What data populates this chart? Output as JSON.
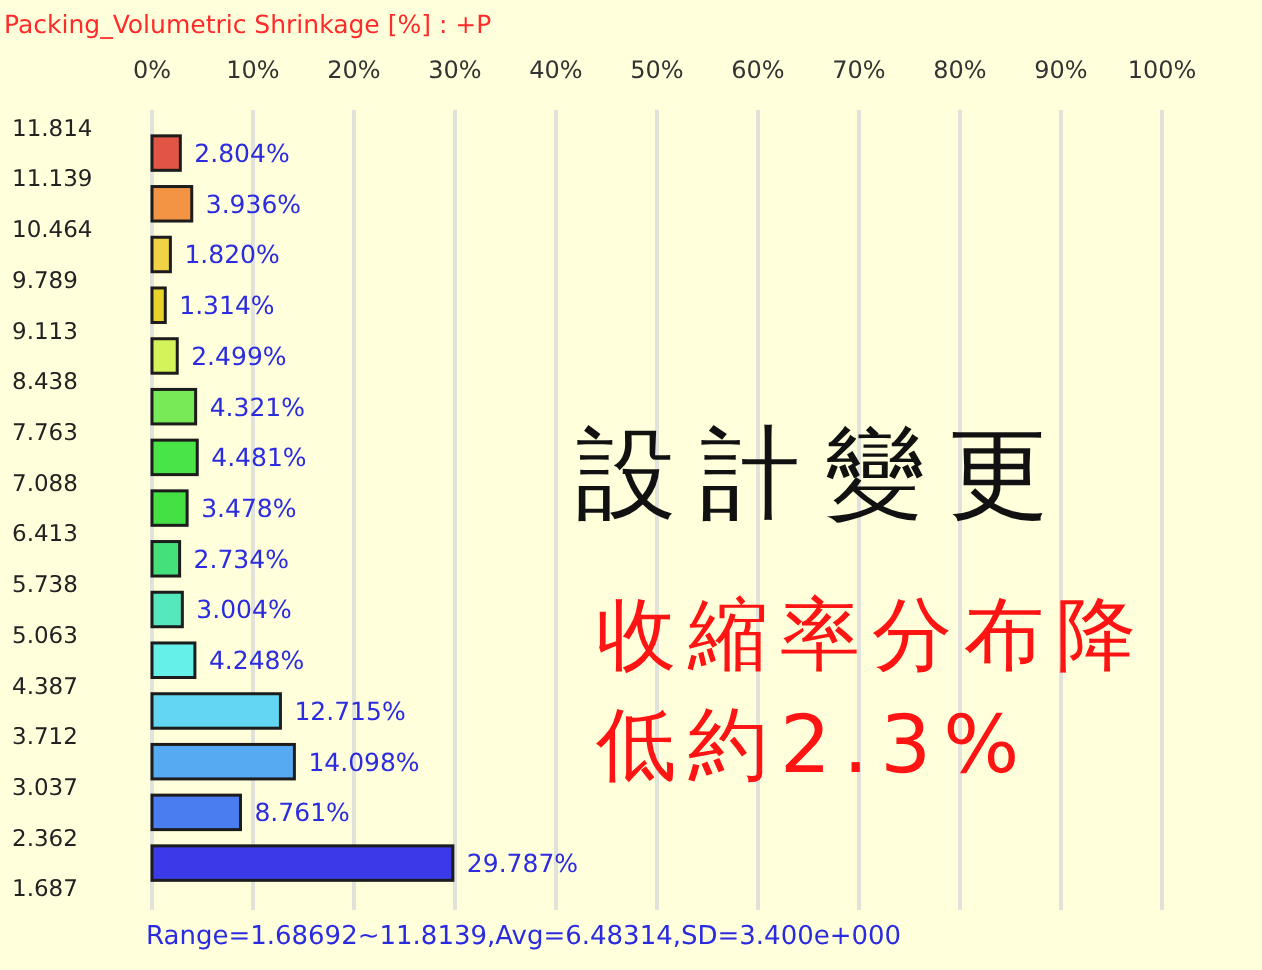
{
  "chart_data": {
    "type": "histogram",
    "orientation": "horizontal",
    "title": "Packing_Volumetric Shrinkage [%] : +P",
    "bins": [
      1.687,
      2.362,
      3.037,
      3.712,
      4.387,
      5.063,
      5.738,
      6.413,
      7.088,
      7.763,
      8.438,
      9.113,
      9.789,
      10.464,
      11.139,
      11.814
    ],
    "values": [
      29.787,
      8.761,
      14.098,
      12.715,
      4.248,
      3.004,
      2.734,
      3.478,
      4.481,
      4.321,
      2.499,
      1.314,
      1.82,
      3.936,
      2.804
    ],
    "value_labels": [
      "29.787%",
      "8.761%",
      "14.098%",
      "12.715%",
      "4.248%",
      "3.004%",
      "2.734%",
      "3.478%",
      "4.481%",
      "4.321%",
      "2.499%",
      "1.314%",
      "1.820%",
      "3.936%",
      "2.804%"
    ],
    "colors": [
      "#3a3ae8",
      "#4a7ef0",
      "#55aaf2",
      "#62d6f2",
      "#66f0ea",
      "#55e8bc",
      "#44e07a",
      "#44e044",
      "#48e448",
      "#78ea58",
      "#d4f25a",
      "#e8d428",
      "#f0d244",
      "#f29444",
      "#e25444"
    ],
    "xlim": [
      0,
      100
    ],
    "xticks": [
      {
        "value": 0,
        "label": "0%"
      },
      {
        "value": 10,
        "label": "10%"
      },
      {
        "value": 20,
        "label": "20%"
      },
      {
        "value": 30,
        "label": "30%"
      },
      {
        "value": 40,
        "label": "40%"
      },
      {
        "value": 50,
        "label": "50%"
      },
      {
        "value": 60,
        "label": "60%"
      },
      {
        "value": 70,
        "label": "70%"
      },
      {
        "value": 80,
        "label": "80%"
      },
      {
        "value": 90,
        "label": "90%"
      },
      {
        "value": 100,
        "label": "100%"
      }
    ],
    "ylim": [
      1.4,
      12.05
    ],
    "yticks": [
      1.687,
      2.362,
      3.037,
      3.712,
      4.387,
      5.063,
      5.738,
      6.413,
      7.088,
      7.763,
      8.438,
      9.113,
      9.789,
      10.464,
      11.139,
      11.814
    ],
    "grid": "x",
    "annotations": [
      "設計變更",
      "收縮率分布降低約2.3%",
      "Range=1.68692~11.8139,Avg=6.48314,SD=3.400e+000"
    ]
  }
}
